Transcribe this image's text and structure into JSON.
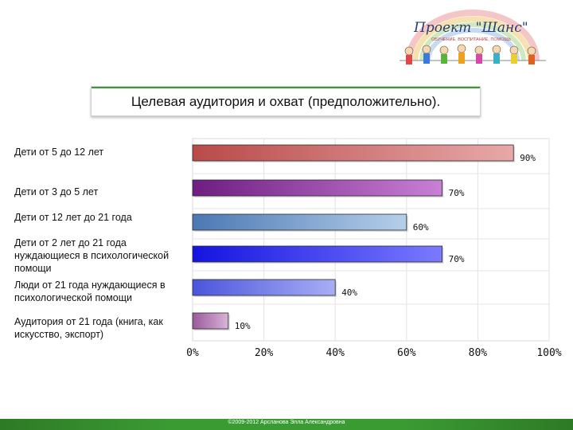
{
  "header": {
    "logo_text": "Проект \"Шанс\"",
    "logo_tagline": "ОБУЧЕНИЕ, ВОСПИТАНИЕ, ПОМОЩЬ",
    "title": "Целевая аудитория и охват (предположительно)."
  },
  "chart_data": {
    "type": "bar",
    "orientation": "horizontal",
    "categories": [
      "Дети от 5 до 12 лет",
      "Дети от 3 до 5 лет",
      "Дети от 12 лет до 21 года",
      "Дети от 2 лет до 21 года нуждающиеся в психологической помощи",
      "Люди от 21 года нуждающиеся в психологической помощи",
      "Аудитория от 21 года (книга, как искусство, экспорт)"
    ],
    "values": [
      90,
      70,
      60,
      70,
      40,
      10
    ],
    "value_labels": [
      "90%",
      "70%",
      "60%",
      "70%",
      "40%",
      "10%"
    ],
    "bar_colors": [
      [
        "#b94a4a",
        "#e8a8a8"
      ],
      [
        "#6e1d80",
        "#c880d6"
      ],
      [
        "#4b78b4",
        "#b6cfea"
      ],
      [
        "#1414e0",
        "#7a7aff"
      ],
      [
        "#4b55dc",
        "#a8aef5"
      ],
      [
        "#9a5a9a",
        "#d8b4d8"
      ]
    ],
    "xlim": [
      0,
      100
    ],
    "xticks": [
      "0%",
      "20%",
      "40%",
      "60%",
      "80%",
      "100%"
    ],
    "grid": true,
    "legend": "none"
  },
  "footer": {
    "text": "©2009-2012 Арсланова Элла Александровна",
    "color": "#3b9b33"
  }
}
